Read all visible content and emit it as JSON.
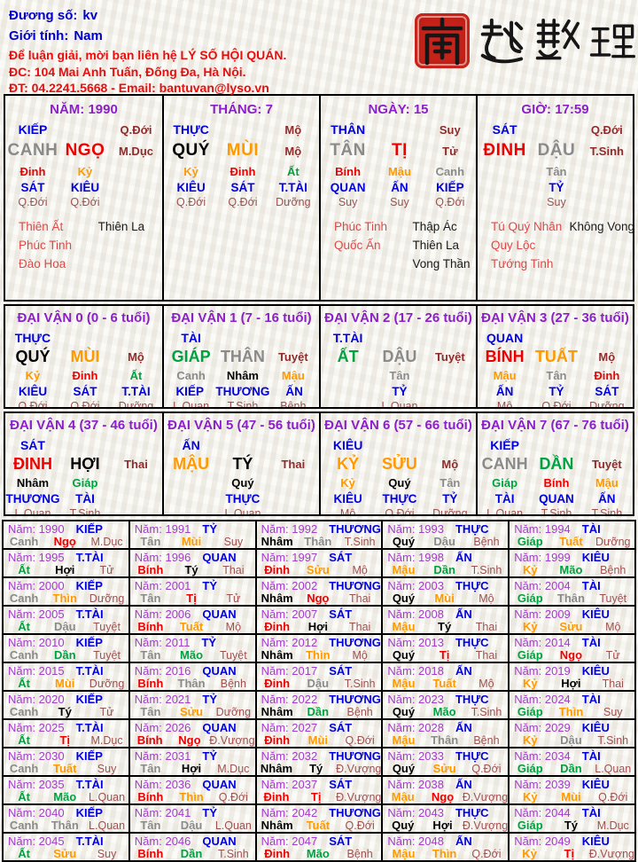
{
  "header": {
    "field1_label": "Đương số:",
    "field1_value": "kv",
    "field2_label": "Giới tính:",
    "field2_value": "Nam",
    "contact_lines": [
      "Để luận giải, mời bạn liên hệ LÝ SỐ HỘI QUÁN.",
      "ĐC: 104 Mai Anh Tuấn, Đống Đa, Hà Nội.",
      "ĐT: 04.2241.5668 - Email: bantuvan@lyso.vn"
    ]
  },
  "brand": {
    "seal_char": "南",
    "title_chars": [
      "越",
      "數",
      "理"
    ],
    "full_text": "南越數理"
  },
  "colors": {
    "metal": "#8a8a8a",
    "wood": "#00a140",
    "water": "#000000",
    "fire": "#ee0000",
    "earth": "#ff9900",
    "ten_god_blue": "#0000e0",
    "stage_maroon": "#9c5151",
    "title_purple": "#8b1fc8",
    "header_blue": "#0000cc",
    "header_red": "#e80e0e",
    "star_red": "#e04848",
    "seal_red": "#c8231a"
  },
  "pillars": [
    {
      "id": "nam",
      "title": "NĂM: 1990",
      "god": "KIẾP",
      "top_right": "Q.Đới",
      "stem": "CANH",
      "stem_el": "metal",
      "branch": "NGỌ",
      "branch_el": "fire",
      "stage": "M.Dục",
      "hidden": [
        {
          "stem": "Đinh",
          "el": "fire",
          "god": "SÁT",
          "stage": "Q.Đới"
        },
        {
          "stem": "Kỷ",
          "el": "earth",
          "god": "KIÊU",
          "stage": "Q.Đới"
        },
        null
      ],
      "stars_red": [
        "Thiên Ất",
        "Phúc Tinh",
        "Đào Hoa"
      ],
      "stars_black": [
        "Thiên La"
      ]
    },
    {
      "id": "thang",
      "title": "THÁNG: 7",
      "god": "THỰC",
      "top_right": "Mộ",
      "stem": "QUÝ",
      "stem_el": "water",
      "branch": "MÙI",
      "branch_el": "earth",
      "stage": "Mộ",
      "hidden": [
        {
          "stem": "Kỷ",
          "el": "earth",
          "god": "KIÊU",
          "stage": "Q.Đới"
        },
        {
          "stem": "Đinh",
          "el": "fire",
          "god": "SÁT",
          "stage": "Q.Đới"
        },
        {
          "stem": "Ất",
          "el": "wood",
          "god": "T.TÀI",
          "stage": "Dưỡng"
        }
      ],
      "stars_red": [],
      "stars_black": []
    },
    {
      "id": "ngay",
      "title": "NGÀY: 15",
      "god": "THÂN",
      "top_right": "Suy",
      "stem": "TÂN",
      "stem_el": "metal",
      "branch": "TỊ",
      "branch_el": "fire",
      "stage": "Tử",
      "hidden": [
        {
          "stem": "Bính",
          "el": "fire",
          "god": "QUAN",
          "stage": "Suy"
        },
        {
          "stem": "Mậu",
          "el": "earth",
          "god": "ẤN",
          "stage": "Suy"
        },
        {
          "stem": "Canh",
          "el": "metal",
          "god": "KIẾP",
          "stage": "Q.Đới"
        }
      ],
      "stars_red": [
        "Phúc Tinh",
        "Quốc Ấn"
      ],
      "stars_black": [
        "Thập Ác",
        "Thiên La",
        "Vong Thần"
      ]
    },
    {
      "id": "gio",
      "title": "GIỜ: 17:59",
      "god": "SÁT",
      "top_right": "Q.Đới",
      "stem": "ĐINH",
      "stem_el": "fire",
      "branch": "DẬU",
      "branch_el": "metal",
      "stage": "T.Sinh",
      "hidden": [
        null,
        {
          "stem": "Tân",
          "el": "metal",
          "god": "TỶ",
          "stage": "Suy"
        },
        null
      ],
      "stars_red": [
        "Tú Quý Nhân",
        "Quy Lộc",
        "Tướng Tinh"
      ],
      "stars_black": [
        "Không Vong"
      ]
    }
  ],
  "dai_van": [
    {
      "title": "ĐẠI VẬN 0 (0 - 6 tuổi)",
      "god": "THỰC",
      "stem": "QUÝ",
      "stem_el": "water",
      "branch": "MÙI",
      "branch_el": "earth",
      "stage": "Mộ",
      "hidden": [
        {
          "stem": "Kỷ",
          "el": "earth",
          "god": "KIÊU",
          "stage": "Q.Đới"
        },
        {
          "stem": "Đinh",
          "el": "fire",
          "god": "SÁT",
          "stage": "Q.Đới"
        },
        {
          "stem": "Ất",
          "el": "wood",
          "god": "T.TÀI",
          "stage": "Dưỡng"
        }
      ]
    },
    {
      "title": "ĐẠI VẬN 1 (7 - 16 tuổi)",
      "god": "TÀI",
      "stem": "GIÁP",
      "stem_el": "wood",
      "branch": "THÂN",
      "branch_el": "metal",
      "stage": "Tuyệt",
      "hidden": [
        {
          "stem": "Canh",
          "el": "metal",
          "god": "KIẾP",
          "stage": "L.Quan"
        },
        {
          "stem": "Nhâm",
          "el": "water",
          "god": "THƯƠNG",
          "stage": "T.Sinh"
        },
        {
          "stem": "Mậu",
          "el": "earth",
          "god": "ẤN",
          "stage": "Bệnh"
        }
      ]
    },
    {
      "title": "ĐẠI VẬN 2 (17 - 26 tuổi)",
      "god": "T.TÀI",
      "stem": "ẤT",
      "stem_el": "wood",
      "branch": "DẬU",
      "branch_el": "metal",
      "stage": "Tuyệt",
      "hidden": [
        null,
        {
          "stem": "Tân",
          "el": "metal",
          "god": "TỶ",
          "stage": "L.Quan"
        },
        null
      ]
    },
    {
      "title": "ĐẠI VẬN 3 (27 - 36 tuổi)",
      "god": "QUAN",
      "stem": "BÍNH",
      "stem_el": "fire",
      "branch": "TUẤT",
      "branch_el": "earth",
      "stage": "Mộ",
      "hidden": [
        {
          "stem": "Mậu",
          "el": "earth",
          "god": "ẤN",
          "stage": "Mộ"
        },
        {
          "stem": "Tân",
          "el": "metal",
          "god": "TỶ",
          "stage": "Q.Đới"
        },
        {
          "stem": "Đinh",
          "el": "fire",
          "god": "SÁT",
          "stage": "Dưỡng"
        }
      ]
    },
    {
      "title": "ĐẠI VẬN 4 (37 - 46 tuổi)",
      "god": "SÁT",
      "stem": "ĐINH",
      "stem_el": "fire",
      "branch": "HỢI",
      "branch_el": "water",
      "stage": "Thai",
      "hidden": [
        {
          "stem": "Nhâm",
          "el": "water",
          "god": "THƯƠNG",
          "stage": "L.Quan"
        },
        {
          "stem": "Giáp",
          "el": "wood",
          "god": "TÀI",
          "stage": "T.Sinh"
        },
        null
      ]
    },
    {
      "title": "ĐẠI VẬN 5 (47 - 56 tuổi)",
      "god": "ẤN",
      "stem": "MẬU",
      "stem_el": "earth",
      "branch": "TÝ",
      "branch_el": "water",
      "stage": "Thai",
      "hidden": [
        null,
        {
          "stem": "Quý",
          "el": "water",
          "god": "THỰC",
          "stage": "L.Quan"
        },
        null
      ]
    },
    {
      "title": "ĐẠI VẬN 6 (57 - 66 tuổi)",
      "god": "KIÊU",
      "stem": "KỶ",
      "stem_el": "earth",
      "branch": "SỬU",
      "branch_el": "earth",
      "stage": "Mộ",
      "hidden": [
        {
          "stem": "Kỷ",
          "el": "earth",
          "god": "KIÊU",
          "stage": "Mộ"
        },
        {
          "stem": "Quý",
          "el": "water",
          "god": "THỰC",
          "stage": "Q.Đới"
        },
        {
          "stem": "Tân",
          "el": "metal",
          "god": "TỶ",
          "stage": "Dưỡng"
        }
      ]
    },
    {
      "title": "ĐẠI VẬN 7 (67 - 76 tuổi)",
      "god": "KIẾP",
      "stem": "CANH",
      "stem_el": "metal",
      "branch": "DẦN",
      "branch_el": "wood",
      "stage": "Tuyệt",
      "hidden": [
        {
          "stem": "Giáp",
          "el": "wood",
          "god": "TÀI",
          "stage": "L.Quan"
        },
        {
          "stem": "Bính",
          "el": "fire",
          "god": "QUAN",
          "stage": "T.Sinh"
        },
        {
          "stem": "Mậu",
          "el": "earth",
          "god": "ẤN",
          "stage": "T.Sinh"
        }
      ]
    }
  ],
  "year_table": {
    "label_prefix": "Năm:",
    "cells": [
      {
        "y": "1990",
        "g": "KIẾP",
        "s": "Canh",
        "se": "metal",
        "b": "Ngọ",
        "be": "fire",
        "t": "M.Dục"
      },
      {
        "y": "1991",
        "g": "TỶ",
        "s": "Tân",
        "se": "metal",
        "b": "Mùi",
        "be": "earth",
        "t": "Suy"
      },
      {
        "y": "1992",
        "g": "THƯƠNG",
        "s": "Nhâm",
        "se": "water",
        "b": "Thân",
        "be": "metal",
        "t": "T.Sinh"
      },
      {
        "y": "1993",
        "g": "THỰC",
        "s": "Quý",
        "se": "water",
        "b": "Dậu",
        "be": "metal",
        "t": "Bệnh"
      },
      {
        "y": "1994",
        "g": "TÀI",
        "s": "Giáp",
        "se": "wood",
        "b": "Tuất",
        "be": "earth",
        "t": "Dưỡng"
      },
      {
        "y": "1995",
        "g": "T.TÀI",
        "s": "Ất",
        "se": "wood",
        "b": "Hợi",
        "be": "water",
        "t": "Tử"
      },
      {
        "y": "1996",
        "g": "QUAN",
        "s": "Bính",
        "se": "fire",
        "b": "Tý",
        "be": "water",
        "t": "Thai"
      },
      {
        "y": "1997",
        "g": "SÁT",
        "s": "Đinh",
        "se": "fire",
        "b": "Sửu",
        "be": "earth",
        "t": "Mộ"
      },
      {
        "y": "1998",
        "g": "ẤN",
        "s": "Mậu",
        "se": "earth",
        "b": "Dần",
        "be": "wood",
        "t": "T.Sinh"
      },
      {
        "y": "1999",
        "g": "KIÊU",
        "s": "Kỷ",
        "se": "earth",
        "b": "Mão",
        "be": "wood",
        "t": "Bệnh"
      },
      {
        "y": "2000",
        "g": "KIẾP",
        "s": "Canh",
        "se": "metal",
        "b": "Thìn",
        "be": "earth",
        "t": "Dưỡng"
      },
      {
        "y": "2001",
        "g": "TỶ",
        "s": "Tân",
        "se": "metal",
        "b": "Tị",
        "be": "fire",
        "t": "Tử"
      },
      {
        "y": "2002",
        "g": "THƯƠNG",
        "s": "Nhâm",
        "se": "water",
        "b": "Ngọ",
        "be": "fire",
        "t": "Thai"
      },
      {
        "y": "2003",
        "g": "THỰC",
        "s": "Quý",
        "se": "water",
        "b": "Mùi",
        "be": "earth",
        "t": "Mộ"
      },
      {
        "y": "2004",
        "g": "TÀI",
        "s": "Giáp",
        "se": "wood",
        "b": "Thân",
        "be": "metal",
        "t": "Tuyệt"
      },
      {
        "y": "2005",
        "g": "T.TÀI",
        "s": "Ất",
        "se": "wood",
        "b": "Dậu",
        "be": "metal",
        "t": "Tuyệt"
      },
      {
        "y": "2006",
        "g": "QUAN",
        "s": "Bính",
        "se": "fire",
        "b": "Tuất",
        "be": "earth",
        "t": "Mộ"
      },
      {
        "y": "2007",
        "g": "SÁT",
        "s": "Đinh",
        "se": "fire",
        "b": "Hợi",
        "be": "water",
        "t": "Thai"
      },
      {
        "y": "2008",
        "g": "ẤN",
        "s": "Mậu",
        "se": "earth",
        "b": "Tý",
        "be": "water",
        "t": "Thai"
      },
      {
        "y": "2009",
        "g": "KIÊU",
        "s": "Kỷ",
        "se": "earth",
        "b": "Sửu",
        "be": "earth",
        "t": "Mộ"
      },
      {
        "y": "2010",
        "g": "KIẾP",
        "s": "Canh",
        "se": "metal",
        "b": "Dần",
        "be": "wood",
        "t": "Tuyệt"
      },
      {
        "y": "2011",
        "g": "TỶ",
        "s": "Tân",
        "se": "metal",
        "b": "Mão",
        "be": "wood",
        "t": "Tuyệt"
      },
      {
        "y": "2012",
        "g": "THƯƠNG",
        "s": "Nhâm",
        "se": "water",
        "b": "Thìn",
        "be": "earth",
        "t": "Mộ"
      },
      {
        "y": "2013",
        "g": "THỰC",
        "s": "Quý",
        "se": "water",
        "b": "Tị",
        "be": "fire",
        "t": "Thai"
      },
      {
        "y": "2014",
        "g": "TÀI",
        "s": "Giáp",
        "se": "wood",
        "b": "Ngọ",
        "be": "fire",
        "t": "Tử"
      },
      {
        "y": "2015",
        "g": "T.TÀI",
        "s": "Ất",
        "se": "wood",
        "b": "Mùi",
        "be": "earth",
        "t": "Dưỡng"
      },
      {
        "y": "2016",
        "g": "QUAN",
        "s": "Bính",
        "se": "fire",
        "b": "Thân",
        "be": "metal",
        "t": "Bệnh"
      },
      {
        "y": "2017",
        "g": "SÁT",
        "s": "Đinh",
        "se": "fire",
        "b": "Dậu",
        "be": "metal",
        "t": "T.Sinh"
      },
      {
        "y": "2018",
        "g": "ẤN",
        "s": "Mậu",
        "se": "earth",
        "b": "Tuất",
        "be": "earth",
        "t": "Mộ"
      },
      {
        "y": "2019",
        "g": "KIÊU",
        "s": "Kỷ",
        "se": "earth",
        "b": "Hợi",
        "be": "water",
        "t": "Thai"
      },
      {
        "y": "2020",
        "g": "KIẾP",
        "s": "Canh",
        "se": "metal",
        "b": "Tý",
        "be": "water",
        "t": "Tử"
      },
      {
        "y": "2021",
        "g": "TỶ",
        "s": "Tân",
        "se": "metal",
        "b": "Sửu",
        "be": "earth",
        "t": "Dưỡng"
      },
      {
        "y": "2022",
        "g": "THƯƠNG",
        "s": "Nhâm",
        "se": "water",
        "b": "Dần",
        "be": "wood",
        "t": "Bệnh"
      },
      {
        "y": "2023",
        "g": "THỰC",
        "s": "Quý",
        "se": "water",
        "b": "Mão",
        "be": "wood",
        "t": "T.Sinh"
      },
      {
        "y": "2024",
        "g": "TÀI",
        "s": "Giáp",
        "se": "wood",
        "b": "Thìn",
        "be": "earth",
        "t": "Suy"
      },
      {
        "y": "2025",
        "g": "T.TÀI",
        "s": "Ất",
        "se": "wood",
        "b": "Tị",
        "be": "fire",
        "t": "M.Dục"
      },
      {
        "y": "2026",
        "g": "QUAN",
        "s": "Bính",
        "se": "fire",
        "b": "Ngọ",
        "be": "fire",
        "t": "Đ.Vượng"
      },
      {
        "y": "2027",
        "g": "SÁT",
        "s": "Đinh",
        "se": "fire",
        "b": "Mùi",
        "be": "earth",
        "t": "Q.Đới"
      },
      {
        "y": "2028",
        "g": "ẤN",
        "s": "Mậu",
        "se": "earth",
        "b": "Thân",
        "be": "metal",
        "t": "Bệnh"
      },
      {
        "y": "2029",
        "g": "KIÊU",
        "s": "Kỷ",
        "se": "earth",
        "b": "Dậu",
        "be": "metal",
        "t": "T.Sinh"
      },
      {
        "y": "2030",
        "g": "KIẾP",
        "s": "Canh",
        "se": "metal",
        "b": "Tuất",
        "be": "earth",
        "t": "Suy"
      },
      {
        "y": "2031",
        "g": "TỶ",
        "s": "Tân",
        "se": "metal",
        "b": "Hợi",
        "be": "water",
        "t": "M.Dục"
      },
      {
        "y": "2032",
        "g": "THƯƠNG",
        "s": "Nhâm",
        "se": "water",
        "b": "Tý",
        "be": "water",
        "t": "Đ.Vượng"
      },
      {
        "y": "2033",
        "g": "THỰC",
        "s": "Quý",
        "se": "water",
        "b": "Sửu",
        "be": "earth",
        "t": "Q.Đới"
      },
      {
        "y": "2034",
        "g": "TÀI",
        "s": "Giáp",
        "se": "wood",
        "b": "Dần",
        "be": "wood",
        "t": "L.Quan"
      },
      {
        "y": "2035",
        "g": "T.TÀI",
        "s": "Ất",
        "se": "wood",
        "b": "Mão",
        "be": "wood",
        "t": "L.Quan"
      },
      {
        "y": "2036",
        "g": "QUAN",
        "s": "Bính",
        "se": "fire",
        "b": "Thìn",
        "be": "earth",
        "t": "Q.Đới"
      },
      {
        "y": "2037",
        "g": "SÁT",
        "s": "Đinh",
        "se": "fire",
        "b": "Tị",
        "be": "fire",
        "t": "Đ.Vượng"
      },
      {
        "y": "2038",
        "g": "ẤN",
        "s": "Mậu",
        "se": "earth",
        "b": "Ngọ",
        "be": "fire",
        "t": "Đ.Vượng"
      },
      {
        "y": "2039",
        "g": "KIÊU",
        "s": "Kỷ",
        "se": "earth",
        "b": "Mùi",
        "be": "earth",
        "t": "Q.Đới"
      },
      {
        "y": "2040",
        "g": "KIẾP",
        "s": "Canh",
        "se": "metal",
        "b": "Thân",
        "be": "metal",
        "t": "L.Quan"
      },
      {
        "y": "2041",
        "g": "TỶ",
        "s": "Tân",
        "se": "metal",
        "b": "Dậu",
        "be": "metal",
        "t": "L.Quan"
      },
      {
        "y": "2042",
        "g": "THƯƠNG",
        "s": "Nhâm",
        "se": "water",
        "b": "Tuất",
        "be": "earth",
        "t": "Q.Đới"
      },
      {
        "y": "2043",
        "g": "THỰC",
        "s": "Quý",
        "se": "water",
        "b": "Hợi",
        "be": "water",
        "t": "Đ.Vượng"
      },
      {
        "y": "2044",
        "g": "TÀI",
        "s": "Giáp",
        "se": "wood",
        "b": "Tý",
        "be": "water",
        "t": "M.Dục"
      },
      {
        "y": "2045",
        "g": "T.TÀI",
        "s": "Ất",
        "se": "wood",
        "b": "Sửu",
        "be": "earth",
        "t": "Suy"
      },
      {
        "y": "2046",
        "g": "QUAN",
        "s": "Bính",
        "se": "fire",
        "b": "Dần",
        "be": "wood",
        "t": "T.Sinh"
      },
      {
        "y": "2047",
        "g": "SÁT",
        "s": "Đinh",
        "se": "fire",
        "b": "Mão",
        "be": "wood",
        "t": "Bệnh"
      },
      {
        "y": "2048",
        "g": "ẤN",
        "s": "Mậu",
        "se": "earth",
        "b": "Thìn",
        "be": "earth",
        "t": "Q.Đới"
      },
      {
        "y": "2049",
        "g": "KIÊU",
        "s": "Kỷ",
        "se": "earth",
        "b": "Tị",
        "be": "fire",
        "t": "Đ.Vượng"
      }
    ]
  }
}
